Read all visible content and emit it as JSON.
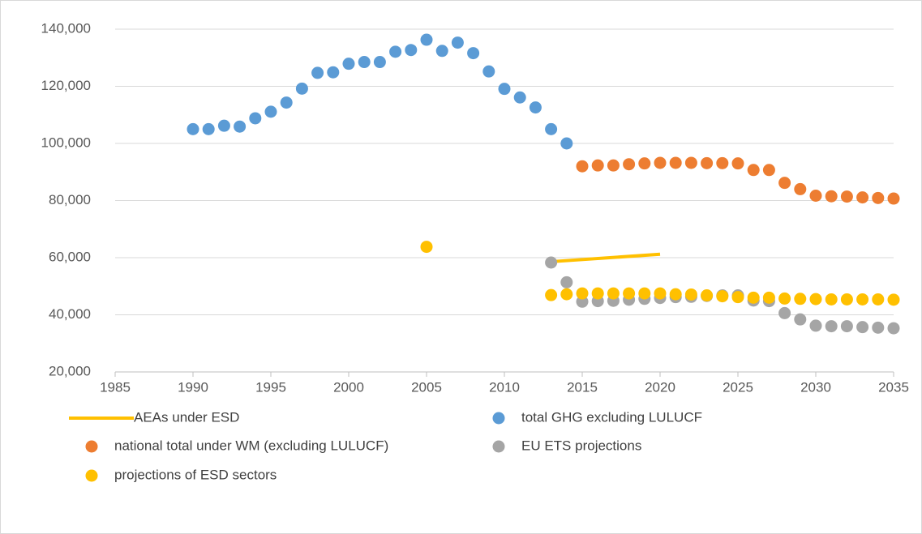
{
  "chart_data": {
    "type": "scatter",
    "xlim": [
      1985,
      2035
    ],
    "xticks": [
      1985,
      1990,
      1995,
      2000,
      2005,
      2010,
      2015,
      2020,
      2025,
      2030,
      2035
    ],
    "ylim": [
      20000,
      140000
    ],
    "yticks": [
      {
        "value": 20000,
        "label": "20,000"
      },
      {
        "value": 40000,
        "label": "40,000"
      },
      {
        "value": 60000,
        "label": "60,000"
      },
      {
        "value": 80000,
        "label": "80,000"
      },
      {
        "value": 100000,
        "label": "100,000"
      },
      {
        "value": 120000,
        "label": "120,000"
      },
      {
        "value": 140000,
        "label": "140,000"
      }
    ],
    "grid": true,
    "legend": "bottom",
    "series": [
      {
        "name": "AEAs under ESD",
        "color": "#ffc000",
        "style": "line",
        "x": [
          2013,
          2020
        ],
        "values": [
          58600,
          61200
        ]
      },
      {
        "name": "total GHG excluding LULUCF",
        "color": "#5b9bd5",
        "style": "marker",
        "x": [
          1990,
          1991,
          1992,
          1993,
          1994,
          1995,
          1996,
          1997,
          1998,
          1999,
          2000,
          2001,
          2002,
          2003,
          2004,
          2005,
          2006,
          2007,
          2008,
          2009,
          2010,
          2011,
          2012,
          2013,
          2014
        ],
        "values": [
          105000,
          105000,
          106200,
          105900,
          108800,
          111100,
          114300,
          119200,
          124700,
          124900,
          127900,
          128500,
          128500,
          132100,
          132700,
          136300,
          132400,
          135300,
          131600,
          125200,
          119100,
          116100,
          112600,
          105000,
          100000
        ]
      },
      {
        "name": "national total under WM (excluding LULUCF)",
        "color": "#ed7d31",
        "style": "marker",
        "x": [
          2015,
          2016,
          2017,
          2018,
          2019,
          2020,
          2021,
          2022,
          2023,
          2024,
          2025,
          2026,
          2027,
          2028,
          2029,
          2030,
          2031,
          2032,
          2033,
          2034,
          2035
        ],
        "values": [
          92000,
          92300,
          92300,
          92700,
          93000,
          93200,
          93200,
          93200,
          93100,
          93100,
          93000,
          90700,
          90700,
          86200,
          84000,
          81700,
          81500,
          81400,
          81100,
          80900,
          80700
        ]
      },
      {
        "name": "EU ETS projections",
        "color": "#a5a5a5",
        "style": "marker",
        "x": [
          2013,
          2014,
          2015,
          2016,
          2017,
          2018,
          2019,
          2020,
          2021,
          2022,
          2023,
          2024,
          2025,
          2026,
          2027,
          2028,
          2029,
          2030,
          2031,
          2032,
          2033,
          2034,
          2035
        ],
        "values": [
          58300,
          51400,
          44600,
          44800,
          44900,
          45300,
          45600,
          45900,
          46200,
          46300,
          46600,
          46800,
          46800,
          45000,
          44800,
          40600,
          38400,
          36200,
          36000,
          36000,
          35700,
          35500,
          35300
        ]
      },
      {
        "name": "projections of ESD sectors",
        "color": "#ffc000",
        "style": "marker",
        "x": [
          2005,
          2013,
          2014,
          2015,
          2016,
          2017,
          2018,
          2019,
          2020,
          2021,
          2022,
          2023,
          2024,
          2025,
          2026,
          2027,
          2028,
          2029,
          2030,
          2031,
          2032,
          2033,
          2034,
          2035
        ],
        "values": [
          63800,
          46900,
          47200,
          47500,
          47500,
          47500,
          47500,
          47500,
          47500,
          47200,
          47100,
          46800,
          46500,
          46200,
          46000,
          46000,
          45700,
          45600,
          45500,
          45400,
          45400,
          45400,
          45400,
          45300
        ]
      }
    ]
  }
}
